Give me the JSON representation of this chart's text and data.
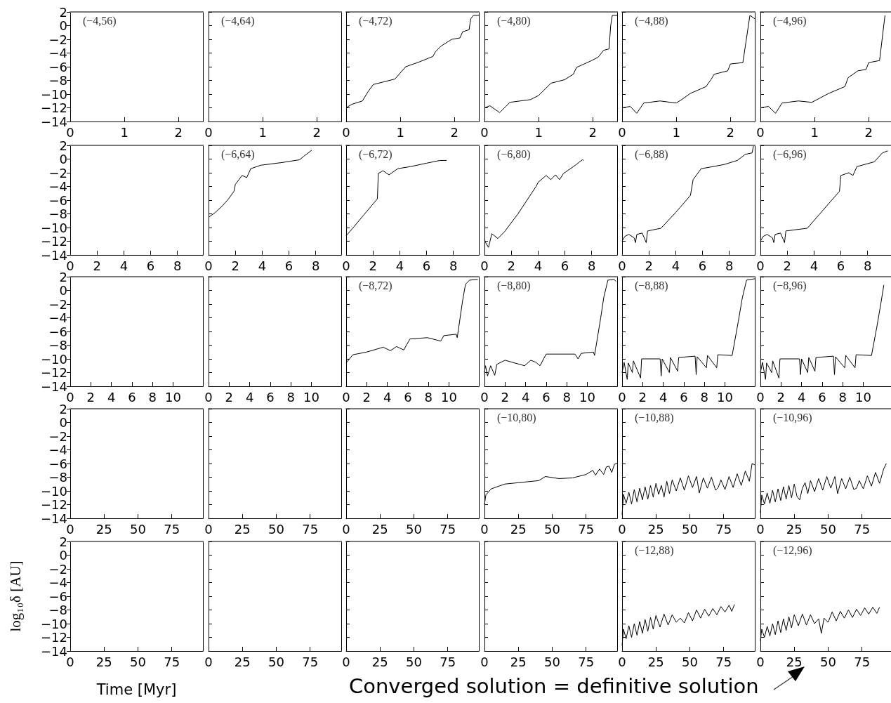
{
  "chart_data": [
    {
      "type": "line",
      "annotations": [
        "(−4,56)"
      ],
      "xlim": [
        0,
        2.45
      ],
      "xticks": [
        0,
        1,
        2
      ],
      "ylim": [
        -14,
        2
      ],
      "yticks": [
        {
          "value": -14,
          "label": "−14"
        },
        {
          "value": -12,
          "label": "−12"
        },
        {
          "value": -10,
          "label": "−10"
        },
        {
          "value": -8,
          "label": "−8"
        },
        {
          "value": -6,
          "label": "−6"
        },
        {
          "value": -4,
          "label": "−4"
        },
        {
          "value": -2,
          "label": "−2"
        },
        0,
        2
      ]
    },
    {
      "type": "line",
      "annotations": [
        "(−4,64)"
      ],
      "xlim": [
        0,
        2.45
      ],
      "xticks": [
        0,
        1,
        2
      ],
      "ylim": [
        -14,
        2
      ],
      "yticks": [
        -14,
        -12,
        -10,
        -8,
        -6,
        -4,
        -2,
        0,
        2
      ],
      "tick_labels": "x"
    },
    {
      "type": "line",
      "annotations": [
        "(−4,72)"
      ],
      "series": [
        {
          "color": "#000000",
          "x": [
            0,
            0.1,
            0.3,
            0.4,
            0.5,
            0.7,
            0.9,
            1.1,
            1.35,
            1.6,
            1.65,
            1.75,
            1.95,
            2.1,
            2.15,
            2.27,
            2.3,
            2.35,
            2.45
          ],
          "values": [
            -12.0,
            -11.5,
            -11.0,
            -9.7,
            -8.6,
            -8.2,
            -7.8,
            -6.0,
            -5.3,
            -4.5,
            -3.8,
            -3.0,
            -2.0,
            -1.8,
            -0.9,
            -0.6,
            1.0,
            1.5,
            1.5
          ]
        }
      ],
      "xlim": [
        0,
        2.45
      ],
      "xticks": [
        0,
        1,
        2
      ],
      "ylim": [
        -14,
        2
      ],
      "yticks": [
        -14,
        -12,
        -10,
        -8,
        -6,
        -4,
        -2,
        0,
        2
      ],
      "tick_labels": "x"
    },
    {
      "type": "line",
      "annotations": [
        "(−4,80)"
      ],
      "series": [
        {
          "color": "#000000",
          "x": [
            0,
            0.1,
            0.28,
            0.47,
            0.85,
            1.0,
            1.23,
            1.48,
            1.64,
            1.7,
            1.98,
            2.1,
            2.2,
            2.3,
            2.33,
            2.36,
            2.45
          ],
          "values": [
            -12.0,
            -11.7,
            -12.7,
            -11.2,
            -10.8,
            -10.2,
            -8.4,
            -7.9,
            -7.1,
            -6.1,
            -5.1,
            -4.6,
            -3.6,
            -3.4,
            0,
            1.5,
            1.5
          ]
        }
      ],
      "xlim": [
        0,
        2.45
      ],
      "xticks": [
        0,
        1,
        2
      ],
      "ylim": [
        -14,
        2
      ],
      "yticks": [
        -14,
        -12,
        -10,
        -8,
        -6,
        -4,
        -2,
        0,
        2
      ],
      "tick_labels": "x"
    },
    {
      "type": "line",
      "annotations": [
        "(−4,88)"
      ],
      "series": [
        {
          "color": "#000000",
          "x": [
            0,
            0.15,
            0.27,
            0.4,
            0.7,
            1.0,
            1.1,
            1.26,
            1.55,
            1.64,
            1.7,
            1.95,
            2.0,
            2.23,
            2.36,
            2.45
          ],
          "values": [
            -12.0,
            -11.8,
            -12.8,
            -11.3,
            -11.0,
            -11.3,
            -10.8,
            -9.9,
            -8.9,
            -7.9,
            -7.1,
            -6.6,
            -5.6,
            -5.4,
            1.5,
            1.0
          ]
        }
      ],
      "xlim": [
        0,
        2.45
      ],
      "xticks": [
        0,
        1,
        2
      ],
      "ylim": [
        -14,
        2
      ],
      "yticks": [
        -14,
        -12,
        -10,
        -8,
        -6,
        -4,
        -2,
        0,
        2
      ],
      "tick_labels": "x"
    },
    {
      "type": "line",
      "annotations": [
        "(−4,96)"
      ],
      "series": [
        {
          "color": "#000000",
          "x": [
            0,
            0.15,
            0.28,
            0.4,
            0.7,
            0.95,
            1.26,
            1.56,
            1.62,
            1.8,
            1.95,
            2.0,
            2.2,
            2.3
          ],
          "values": [
            -12.0,
            -11.8,
            -12.8,
            -11.3,
            -11.0,
            -11.2,
            -9.9,
            -8.9,
            -7.6,
            -6.6,
            -6.4,
            -5.4,
            -5.1,
            1.5
          ]
        }
      ],
      "xlim": [
        0,
        2.45
      ],
      "xticks": [
        0,
        1,
        2
      ],
      "ylim": [
        -14,
        2
      ],
      "yticks": [
        -14,
        -12,
        -10,
        -8,
        -6,
        -4,
        -2,
        0,
        2
      ],
      "tick_labels": "x"
    },
    {
      "type": "line",
      "xlim": [
        0,
        9.9
      ],
      "xticks": [
        0,
        2,
        4,
        6,
        8
      ],
      "ylim": [
        -14,
        2
      ],
      "yticks": [
        {
          "value": -14,
          "label": "−14"
        },
        {
          "value": -12,
          "label": "−12"
        },
        {
          "value": -10,
          "label": "−10"
        },
        {
          "value": -8,
          "label": "−8"
        },
        {
          "value": -6,
          "label": "−6"
        },
        {
          "value": -4,
          "label": "−4"
        },
        {
          "value": -2,
          "label": "−2"
        },
        0,
        2
      ]
    },
    {
      "type": "line",
      "annotations": [
        "(−6,64)"
      ],
      "series": [
        {
          "color": "#000000",
          "x": [
            0,
            0.5,
            1.0,
            1.5,
            1.9,
            2.0,
            2.5,
            2.85,
            3.15,
            3.9,
            5.5,
            6.8,
            7.1,
            7.7
          ],
          "values": [
            -8.5,
            -7.8,
            -6.9,
            -5.8,
            -4.7,
            -3.7,
            -2.4,
            -2.7,
            -1.4,
            -0.9,
            -0.5,
            -0.1,
            0.4,
            1.3
          ]
        }
      ],
      "xlim": [
        0,
        9.9
      ],
      "xticks": [
        0,
        2,
        4,
        6,
        8
      ],
      "ylim": [
        -14,
        2
      ],
      "yticks": [
        -14,
        -12,
        -10,
        -8,
        -6,
        -4,
        -2,
        0,
        2
      ],
      "tick_labels": "x"
    },
    {
      "type": "line",
      "annotations": [
        "(−6,72)"
      ],
      "series": [
        {
          "color": "#000000",
          "x": [
            0,
            0.4,
            1.3,
            2.33,
            2.4,
            2.75,
            3.2,
            3.85,
            4.8,
            6.0,
            7.0,
            7.5
          ],
          "values": [
            -11.2,
            -10.3,
            -8.2,
            -5.8,
            -2.1,
            -1.7,
            -2.3,
            -1.4,
            -1.1,
            -0.6,
            -0.2,
            -0.2
          ]
        }
      ],
      "xlim": [
        0,
        9.9
      ],
      "xticks": [
        0,
        2,
        4,
        6,
        8
      ],
      "ylim": [
        -14,
        2
      ],
      "yticks": [
        -14,
        -12,
        -10,
        -8,
        -6,
        -4,
        -2,
        0,
        2
      ],
      "tick_labels": "x"
    },
    {
      "type": "line",
      "annotations": [
        "(−6,80)"
      ],
      "series": [
        {
          "color": "#000000",
          "x": [
            0,
            0.3,
            0.55,
            1.0,
            1.5,
            2.5,
            3.85,
            4.0,
            4.6,
            4.95,
            5.3,
            5.6,
            5.9,
            6.85,
            7.3,
            7.4
          ],
          "values": [
            -11.9,
            -12.9,
            -10.9,
            -11.6,
            -10.6,
            -8.0,
            -4.0,
            -3.4,
            -2.4,
            -3.0,
            -2.3,
            -3.0,
            -2.1,
            -0.8,
            -0.1,
            -0.2
          ]
        }
      ],
      "xlim": [
        0,
        9.9
      ],
      "xticks": [
        0,
        2,
        4,
        6,
        8
      ],
      "ylim": [
        -14,
        2
      ],
      "yticks": [
        -14,
        -12,
        -10,
        -8,
        -6,
        -4,
        -2,
        0,
        2
      ],
      "tick_labels": "x"
    },
    {
      "type": "line",
      "annotations": [
        "(−6,88)"
      ],
      "series": [
        {
          "color": "#000000",
          "x": [
            0,
            0.2,
            0.5,
            0.9,
            1.0,
            1.1,
            1.5,
            1.8,
            1.9,
            2.9,
            4.0,
            5.1,
            5.3,
            5.9,
            6.5,
            7.6,
            8.6,
            9.2,
            9.7,
            9.8
          ],
          "values": [
            -12.0,
            -11.3,
            -11.0,
            -11.5,
            -12.2,
            -11.0,
            -10.8,
            -12.2,
            -10.5,
            -10.1,
            -7.8,
            -5.3,
            -3.0,
            -1.4,
            -1.2,
            -0.8,
            -0.2,
            0.7,
            0.9,
            1.9
          ]
        }
      ],
      "xlim": [
        0,
        9.9
      ],
      "xticks": [
        0,
        2,
        4,
        6,
        8
      ],
      "ylim": [
        -14,
        2
      ],
      "yticks": [
        -14,
        -12,
        -10,
        -8,
        -6,
        -4,
        -2,
        0,
        2
      ],
      "tick_labels": "x"
    },
    {
      "type": "line",
      "annotations": [
        "(−6,96)"
      ],
      "series": [
        {
          "color": "#000000",
          "x": [
            0,
            0.2,
            0.5,
            0.9,
            1.0,
            1.1,
            1.5,
            1.8,
            1.9,
            3.5,
            5.9,
            6.0,
            6.6,
            6.9,
            7.2,
            8.5,
            9.1,
            9.5
          ],
          "values": [
            -12.0,
            -11.3,
            -11.0,
            -11.5,
            -12.2,
            -11.0,
            -10.8,
            -12.2,
            -10.5,
            -10.1,
            -4.7,
            -2.4,
            -2.0,
            -2.4,
            -1.1,
            -0.4,
            0.9,
            1.2
          ]
        }
      ],
      "xlim": [
        0,
        9.9
      ],
      "xticks": [
        0,
        2,
        4,
        6,
        8
      ],
      "ylim": [
        -14,
        2
      ],
      "yticks": [
        -14,
        -12,
        -10,
        -8,
        -6,
        -4,
        -2,
        0,
        2
      ],
      "tick_labels": "x"
    },
    {
      "type": "line",
      "xlim": [
        0,
        12.9
      ],
      "xticks": [
        0,
        2,
        4,
        6,
        8,
        10
      ],
      "ylim": [
        -14,
        2
      ],
      "yticks": [
        {
          "value": -14,
          "label": "−14"
        },
        {
          "value": -12,
          "label": "−12"
        },
        {
          "value": -10,
          "label": "−10"
        },
        {
          "value": -8,
          "label": "−8"
        },
        {
          "value": -6,
          "label": "−6"
        },
        {
          "value": -4,
          "label": "−4"
        },
        {
          "value": -2,
          "label": "−2"
        },
        0,
        2
      ]
    },
    {
      "type": "line",
      "xlim": [
        0,
        12.9
      ],
      "xticks": [
        0,
        2,
        4,
        6,
        8,
        10
      ],
      "ylim": [
        -14,
        2
      ],
      "yticks": [
        -14,
        -12,
        -10,
        -8,
        -6,
        -4,
        -2,
        0,
        2
      ],
      "tick_labels": "x"
    },
    {
      "type": "line",
      "annotations": [
        "(−8,72)"
      ],
      "series": [
        {
          "color": "#000000",
          "x": [
            0,
            0.65,
            2.0,
            3.6,
            4.3,
            4.9,
            5.6,
            6.2,
            7.9,
            9.2,
            9.5,
            10.7,
            10.8,
            11.3,
            11.6,
            12.0,
            12.8
          ],
          "values": [
            -10.6,
            -9.4,
            -9.0,
            -8.3,
            -8.8,
            -8.2,
            -8.7,
            -7.1,
            -6.9,
            -7.4,
            -6.6,
            -6.4,
            -6.9,
            -1.7,
            0.9,
            1.5,
            1.6
          ]
        }
      ],
      "xlim": [
        0,
        12.9
      ],
      "xticks": [
        0,
        2,
        4,
        6,
        8,
        10
      ],
      "ylim": [
        -14,
        2
      ],
      "yticks": [
        -14,
        -12,
        -10,
        -8,
        -6,
        -4,
        -2,
        0,
        2
      ],
      "tick_labels": "x"
    },
    {
      "type": "line",
      "annotations": [
        "(−8,80)"
      ],
      "series": [
        {
          "color": "#000000",
          "x": [
            0,
            0.1,
            0.3,
            0.6,
            1.0,
            1.2,
            2.0,
            3.9,
            4.5,
            5.0,
            5.4,
            6.0,
            8.8,
            9.1,
            9.4,
            10.6,
            10.7,
            11.3,
            11.6,
            12.0,
            12.6,
            12.8
          ],
          "values": [
            -12.0,
            -11.0,
            -12.5,
            -11.0,
            -12.4,
            -10.8,
            -10.2,
            -11.0,
            -10.2,
            -10.5,
            -11.0,
            -9.3,
            -9.3,
            -10.0,
            -9.2,
            -9.0,
            -9.5,
            -4.0,
            -1.0,
            1.5,
            1.6,
            1.3
          ]
        }
      ],
      "xlim": [
        0,
        12.9
      ],
      "xticks": [
        0,
        2,
        4,
        6,
        8,
        10
      ],
      "ylim": [
        -14,
        2
      ],
      "yticks": [
        -14,
        -12,
        -10,
        -8,
        -6,
        -4,
        -2,
        0,
        2
      ],
      "tick_labels": "x"
    },
    {
      "type": "line",
      "annotations": [
        "(−8,88)"
      ],
      "series": [
        {
          "color": "#000000",
          "x": [
            0,
            0.2,
            0.5,
            0.6,
            1.0,
            1.1,
            1.8,
            1.9,
            3.7,
            3.8,
            3.9,
            4.6,
            4.7,
            5.4,
            5.5,
            7.1,
            7.2,
            7.3,
            8.2,
            8.3,
            9.2,
            9.3,
            10.7,
            11.3,
            11.7,
            12.1,
            12.9
          ],
          "values": [
            -12.0,
            -10.5,
            -13.0,
            -10.6,
            -12.0,
            -10.3,
            -12.8,
            -10.0,
            -10.0,
            -12.5,
            -10.0,
            -12.0,
            -9.8,
            -11.8,
            -9.8,
            -9.6,
            -12.3,
            -9.7,
            -11.3,
            -9.5,
            -11.3,
            -9.4,
            -9.5,
            -4.5,
            -1.0,
            1.5,
            1.7
          ]
        }
      ],
      "xlim": [
        0,
        12.9
      ],
      "xticks": [
        0,
        2,
        4,
        6,
        8,
        10
      ],
      "ylim": [
        -14,
        2
      ],
      "yticks": [
        -14,
        -12,
        -10,
        -8,
        -6,
        -4,
        -2,
        0,
        2
      ],
      "tick_labels": "x"
    },
    {
      "type": "line",
      "annotations": [
        "(−8,96)"
      ],
      "series": [
        {
          "color": "#000000",
          "x": [
            0,
            0.2,
            0.5,
            0.6,
            1.1,
            1.2,
            1.8,
            1.9,
            3.8,
            3.9,
            4.0,
            4.6,
            4.7,
            5.3,
            5.4,
            7.1,
            7.2,
            7.3,
            8.2,
            8.3,
            9.2,
            9.3,
            10.8,
            11.3,
            11.7,
            12.0
          ],
          "values": [
            -12.0,
            -10.5,
            -13.0,
            -10.6,
            -12.0,
            -10.3,
            -12.8,
            -10.0,
            -10.0,
            -12.3,
            -10.0,
            -12.0,
            -9.8,
            -11.8,
            -9.8,
            -9.6,
            -12.3,
            -9.7,
            -11.3,
            -9.5,
            -11.3,
            -9.4,
            -9.5,
            -5.5,
            -2.0,
            0.8
          ]
        }
      ],
      "xlim": [
        0,
        12.9
      ],
      "xticks": [
        0,
        2,
        4,
        6,
        8,
        10
      ],
      "ylim": [
        -14,
        2
      ],
      "yticks": [
        -14,
        -12,
        -10,
        -8,
        -6,
        -4,
        -2,
        0,
        2
      ],
      "tick_labels": "x"
    },
    {
      "type": "line",
      "xlim": [
        0,
        98
      ],
      "xticks": [
        0,
        25,
        50,
        75
      ],
      "ylim": [
        -14,
        2
      ],
      "yticks": [
        {
          "value": -14,
          "label": "−14"
        },
        {
          "value": -12,
          "label": "−12"
        },
        {
          "value": -10,
          "label": "−10"
        },
        {
          "value": -8,
          "label": "−8"
        },
        {
          "value": -6,
          "label": "−6"
        },
        {
          "value": -4,
          "label": "−4"
        },
        {
          "value": -2,
          "label": "−2"
        },
        0,
        2
      ]
    },
    {
      "type": "line",
      "xlim": [
        0,
        98
      ],
      "xticks": [
        0,
        25,
        50,
        75
      ],
      "ylim": [
        -14,
        2
      ],
      "yticks": [
        -14,
        -12,
        -10,
        -8,
        -6,
        -4,
        -2,
        0,
        2
      ],
      "tick_labels": "x"
    },
    {
      "type": "line",
      "xlim": [
        0,
        98
      ],
      "xticks": [
        0,
        25,
        50,
        75
      ],
      "ylim": [
        -14,
        2
      ],
      "yticks": [
        -14,
        -12,
        -10,
        -8,
        -6,
        -4,
        -2,
        0,
        2
      ],
      "tick_labels": "x"
    },
    {
      "type": "line",
      "annotations": [
        "(−10,80)"
      ],
      "series": [
        {
          "color": "#000000",
          "x": [
            0,
            1,
            5,
            15,
            25,
            40,
            45,
            55,
            65,
            75,
            80,
            82,
            85,
            88,
            90,
            92,
            94,
            96,
            98
          ],
          "values": [
            -12.0,
            -10.6,
            -9.7,
            -9.0,
            -8.8,
            -8.5,
            -7.9,
            -8.2,
            -8.1,
            -7.6,
            -7.0,
            -7.7,
            -6.8,
            -7.6,
            -6.5,
            -6.4,
            -7.3,
            -6.1,
            -6.0
          ]
        }
      ],
      "xlim": [
        0,
        98
      ],
      "xticks": [
        0,
        25,
        50,
        75
      ],
      "ylim": [
        -14,
        2
      ],
      "yticks": [
        -14,
        -12,
        -10,
        -8,
        -6,
        -4,
        -2,
        0,
        2
      ],
      "tick_labels": "x"
    },
    {
      "type": "line",
      "annotations": [
        "(−10,88)"
      ],
      "series": [
        {
          "color": "#000000",
          "x": [
            0,
            1,
            3,
            5,
            7,
            9,
            11,
            13,
            15,
            17,
            19,
            21,
            23,
            25,
            27,
            29,
            31,
            33,
            35,
            37,
            40,
            43,
            46,
            49,
            52,
            55,
            57,
            60,
            63,
            66,
            69,
            71,
            73,
            76,
            79,
            82,
            85,
            88,
            91,
            94,
            96,
            98
          ],
          "values": [
            -13.5,
            -10.5,
            -11.8,
            -10.2,
            -11.9,
            -9.8,
            -11.6,
            -9.6,
            -11.3,
            -9.4,
            -11.2,
            -9.2,
            -10.9,
            -8.9,
            -10.5,
            -9.2,
            -10.9,
            -8.6,
            -10.4,
            -8.4,
            -10.0,
            -8.1,
            -9.9,
            -7.8,
            -9.5,
            -7.9,
            -10.3,
            -8.1,
            -9.6,
            -8.0,
            -9.9,
            -9.5,
            -8.4,
            -9.8,
            -7.9,
            -9.5,
            -7.5,
            -9.2,
            -7.1,
            -8.6,
            -6.0,
            -6.2
          ]
        }
      ],
      "xlim": [
        0,
        98
      ],
      "xticks": [
        0,
        25,
        50,
        75
      ],
      "ylim": [
        -14,
        2
      ],
      "yticks": [
        -14,
        -12,
        -10,
        -8,
        -6,
        -4,
        -2,
        0,
        2
      ],
      "tick_labels": "x"
    },
    {
      "type": "line",
      "annotations": [
        "(−10,96)"
      ],
      "series": [
        {
          "color": "#000000",
          "x": [
            0,
            1,
            3,
            5,
            7,
            9,
            11,
            13,
            15,
            17,
            19,
            21,
            23,
            25,
            27,
            29,
            31,
            33,
            35,
            37,
            40,
            43,
            46,
            49,
            52,
            55,
            57,
            60,
            63,
            66,
            69,
            71,
            73,
            76,
            79,
            82,
            85,
            88,
            91,
            93
          ],
          "values": [
            -13.2,
            -10.6,
            -11.9,
            -10.3,
            -11.8,
            -9.9,
            -11.6,
            -9.7,
            -11.4,
            -9.4,
            -11.2,
            -9.2,
            -11.0,
            -9.0,
            -10.8,
            -11.3,
            -9.6,
            -8.8,
            -10.4,
            -8.5,
            -10.1,
            -8.2,
            -9.9,
            -7.9,
            -9.6,
            -7.9,
            -10.4,
            -8.2,
            -9.7,
            -8.0,
            -9.8,
            -9.6,
            -8.5,
            -9.7,
            -7.8,
            -9.3,
            -7.3,
            -8.9,
            -6.8,
            -6.0
          ]
        }
      ],
      "xlim": [
        0,
        98
      ],
      "xticks": [
        0,
        25,
        50,
        75
      ],
      "ylim": [
        -14,
        2
      ],
      "yticks": [
        -14,
        -12,
        -10,
        -8,
        -6,
        -4,
        -2,
        0,
        2
      ],
      "tick_labels": "x"
    },
    {
      "type": "line",
      "xlabel": "Time [Myr]",
      "ylabel": "log₁₀δ [AU]",
      "xlim": [
        0,
        98
      ],
      "xticks": [
        0,
        25,
        50,
        75
      ],
      "ylim": [
        -14,
        2
      ],
      "yticks": [
        {
          "value": -14,
          "label": "−14"
        },
        {
          "value": -12,
          "label": "−12"
        },
        {
          "value": -10,
          "label": "−10"
        },
        {
          "value": -8,
          "label": "−8"
        },
        {
          "value": -6,
          "label": "−6"
        },
        {
          "value": -4,
          "label": "−4"
        },
        {
          "value": -2,
          "label": "−2"
        },
        0,
        2
      ]
    },
    {
      "type": "line",
      "xlim": [
        0,
        98
      ],
      "xticks": [
        0,
        25,
        50,
        75
      ],
      "ylim": [
        -14,
        2
      ],
      "yticks": [
        -14,
        -12,
        -10,
        -8,
        -6,
        -4,
        -2,
        0,
        2
      ],
      "tick_labels": "x"
    },
    {
      "type": "line",
      "xlim": [
        0,
        98
      ],
      "xticks": [
        0,
        25,
        50,
        75
      ],
      "ylim": [
        -14,
        2
      ],
      "yticks": [
        -14,
        -12,
        -10,
        -8,
        -6,
        -4,
        -2,
        0,
        2
      ],
      "tick_labels": "x"
    },
    {
      "type": "line",
      "xlim": [
        0,
        98
      ],
      "xticks": [
        0,
        25,
        50,
        75
      ],
      "ylim": [
        -14,
        2
      ],
      "yticks": [
        -14,
        -12,
        -10,
        -8,
        -6,
        -4,
        -2,
        0,
        2
      ],
      "tick_labels": "x"
    },
    {
      "type": "line",
      "annotations": [
        "(−12,88)"
      ],
      "series": [
        {
          "color": "#000000",
          "x": [
            0,
            1,
            3,
            5,
            7,
            9,
            11,
            13,
            15,
            17,
            19,
            21,
            23,
            25,
            28,
            31,
            34,
            37,
            40,
            43,
            46,
            49,
            52,
            55,
            58,
            61,
            64,
            67,
            70,
            73,
            76,
            79,
            81,
            83
          ],
          "values": [
            -13.2,
            -10.8,
            -12.2,
            -10.3,
            -12.0,
            -10.0,
            -11.7,
            -9.7,
            -11.4,
            -9.4,
            -11.1,
            -9.1,
            -10.8,
            -8.8,
            -10.5,
            -8.6,
            -10.2,
            -8.7,
            -9.8,
            -9.2,
            -9.9,
            -8.4,
            -9.6,
            -8.0,
            -9.2,
            -7.9,
            -8.9,
            -7.8,
            -8.7,
            -7.5,
            -8.3,
            -7.3,
            -8.2,
            -7.2
          ]
        }
      ],
      "xlim": [
        0,
        98
      ],
      "xticks": [
        0,
        25,
        50,
        75
      ],
      "ylim": [
        -14,
        2
      ],
      "yticks": [
        -14,
        -12,
        -10,
        -8,
        -6,
        -4,
        -2,
        0,
        2
      ],
      "tick_labels": "x"
    },
    {
      "type": "line",
      "annotations": [
        "(−12,96)",
        "Converged solution = definitive solution"
      ],
      "series": [
        {
          "color": "#000000",
          "x": [
            0,
            1,
            3,
            5,
            7,
            9,
            11,
            13,
            15,
            17,
            19,
            21,
            23,
            25,
            28,
            31,
            34,
            37,
            40,
            43,
            45,
            47,
            50,
            53,
            56,
            59,
            62,
            65,
            68,
            71,
            74,
            77,
            80,
            83,
            86,
            88
          ],
          "values": [
            -12.5,
            -10.8,
            -12.0,
            -10.4,
            -11.8,
            -10.0,
            -11.6,
            -9.6,
            -11.3,
            -9.3,
            -11.0,
            -9.0,
            -10.6,
            -8.7,
            -10.3,
            -8.6,
            -10.2,
            -8.7,
            -10.0,
            -9.3,
            -11.4,
            -9.2,
            -9.8,
            -8.3,
            -9.6,
            -8.2,
            -9.2,
            -8.0,
            -9.1,
            -7.9,
            -8.8,
            -7.7,
            -8.6,
            -7.6,
            -8.5,
            -7.6
          ]
        }
      ],
      "xlim": [
        0,
        98
      ],
      "xticks": [
        0,
        25,
        50,
        75
      ],
      "ylim": [
        -14,
        2
      ],
      "yticks": [
        -14,
        -12,
        -10,
        -8,
        -6,
        -4,
        -2,
        0,
        2
      ],
      "tick_labels": "x"
    }
  ]
}
